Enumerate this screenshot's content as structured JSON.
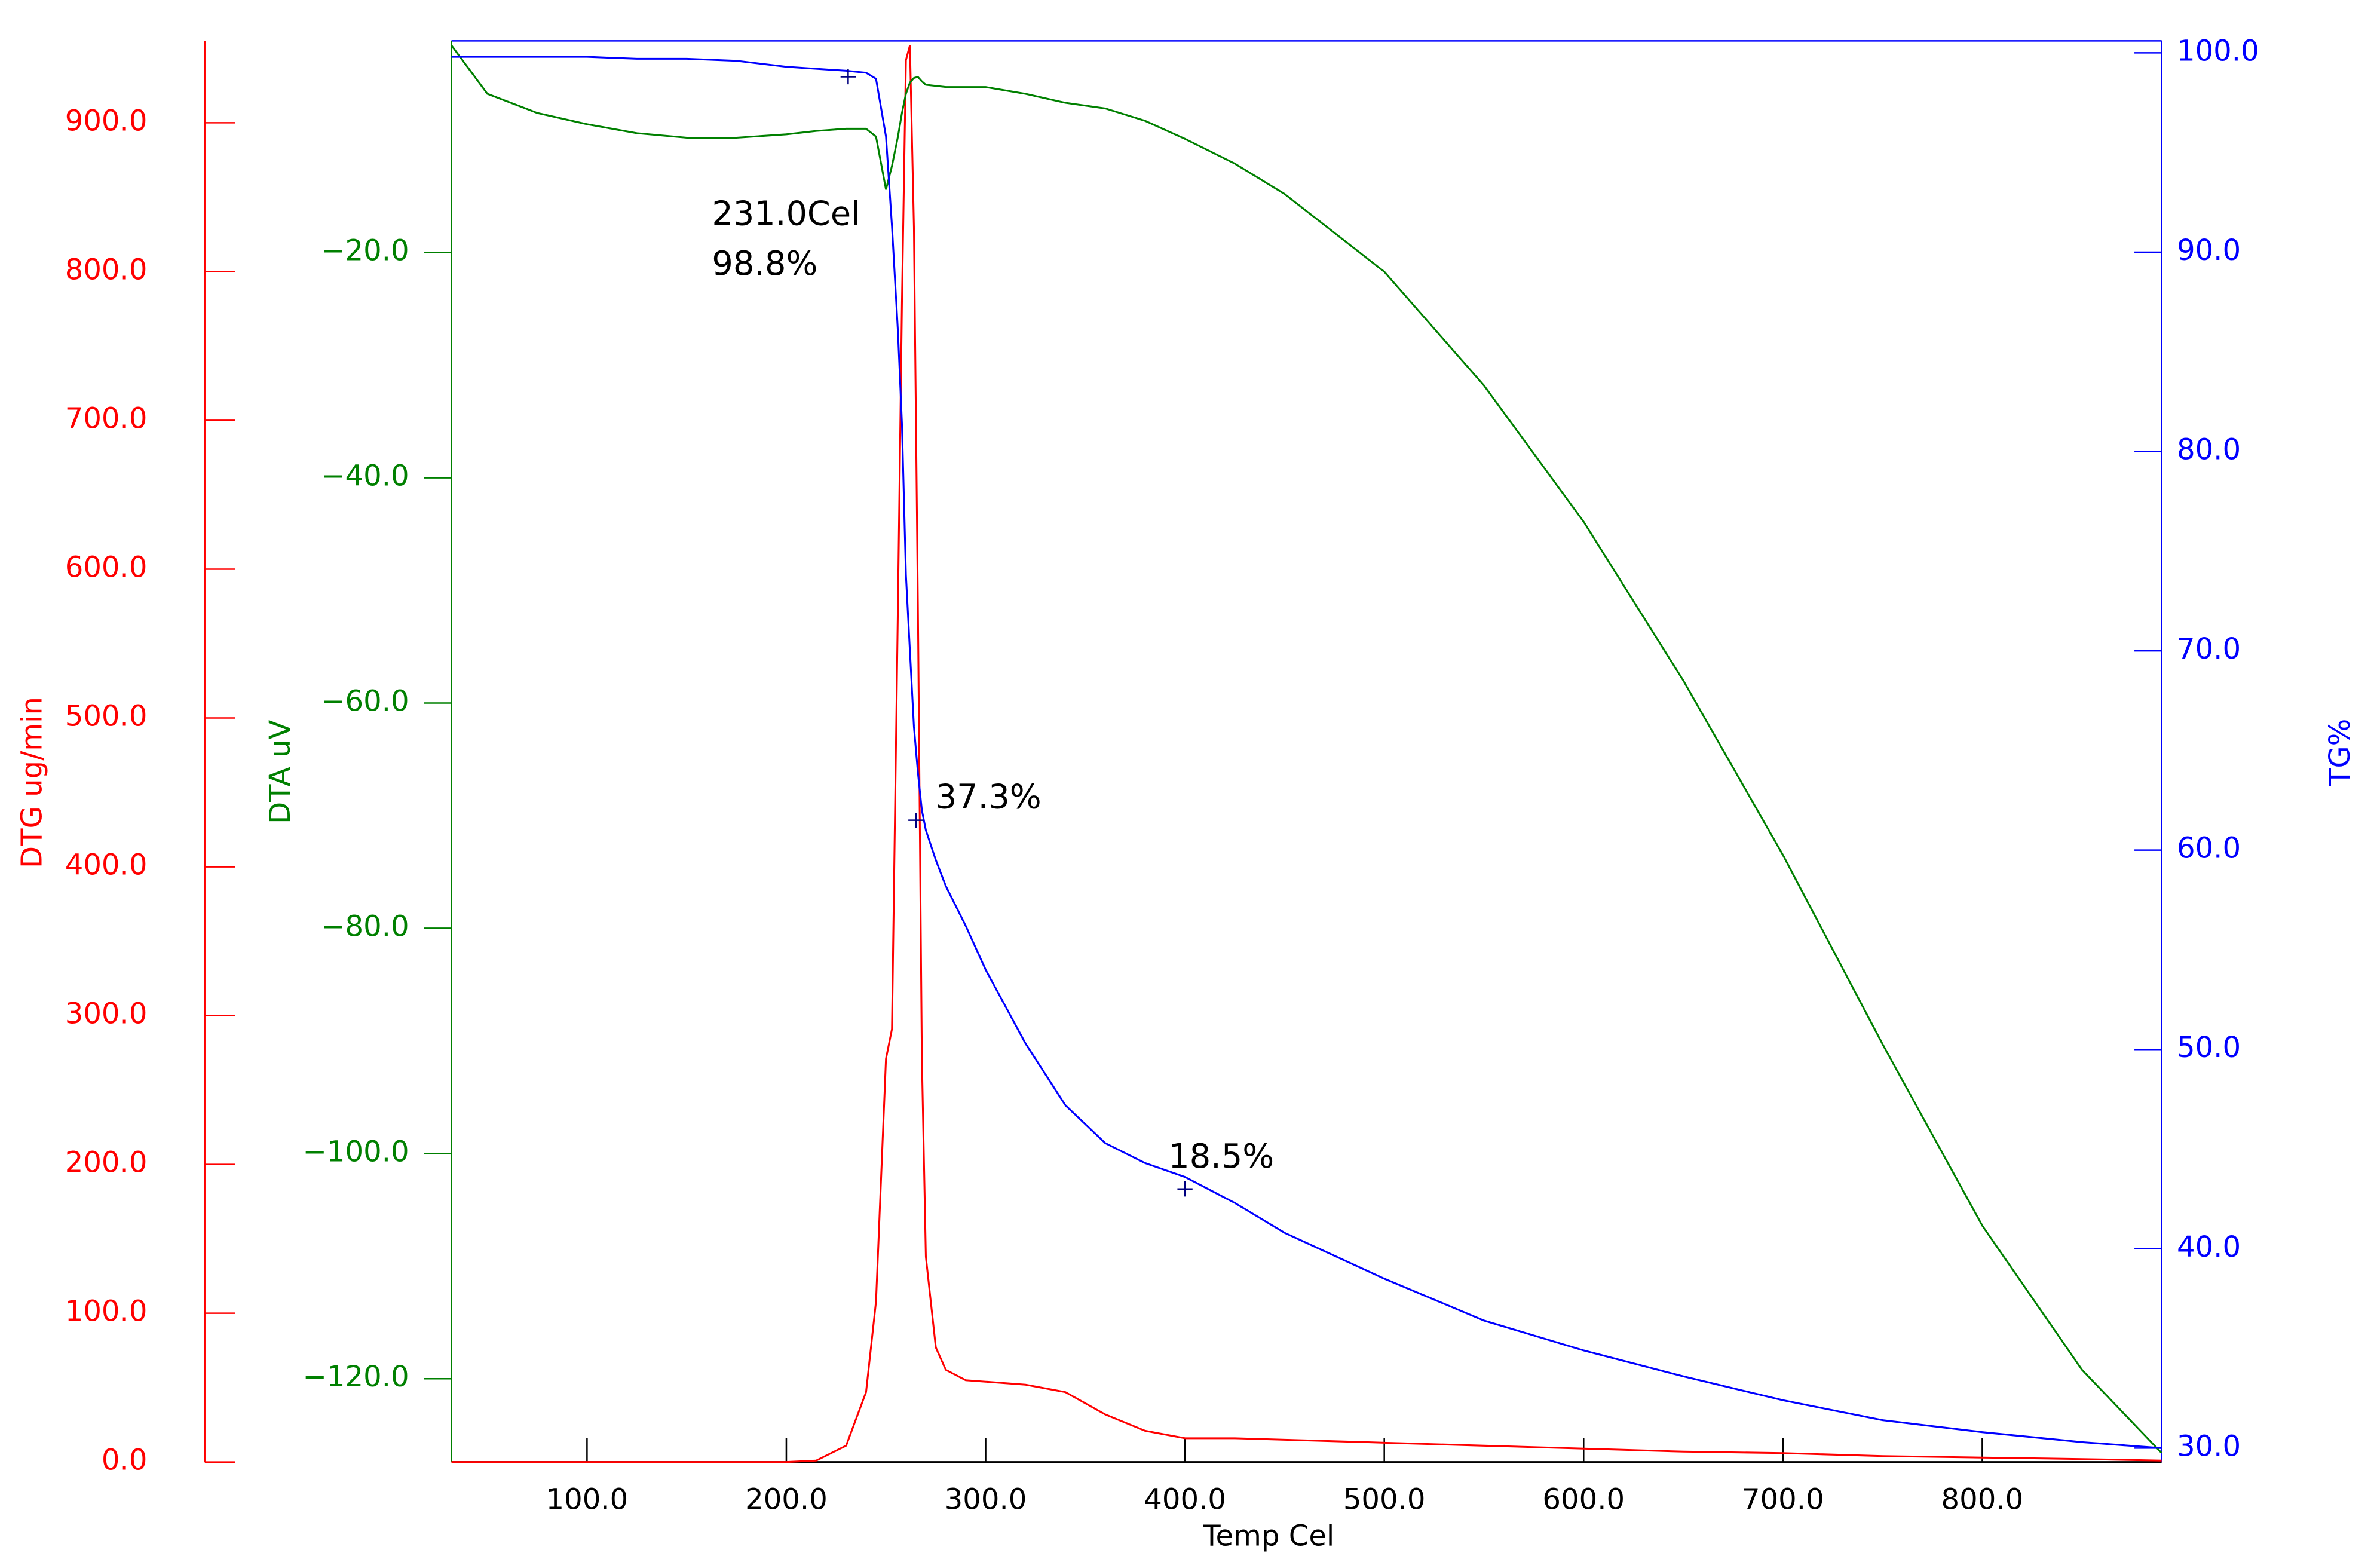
{
  "chart_data": {
    "type": "line",
    "x_label": "Temp Cel",
    "xlim": [
      32,
      890
    ],
    "xticks": [
      {
        "value": 100,
        "label": "100.0"
      },
      {
        "value": 200,
        "label": "200.0"
      },
      {
        "value": 300,
        "label": "300.0"
      },
      {
        "value": 400,
        "label": "400.0"
      },
      {
        "value": 500,
        "label": "500.0"
      },
      {
        "value": 600,
        "label": "600.0"
      },
      {
        "value": 700,
        "label": "700.0"
      },
      {
        "value": 800,
        "label": "800.0"
      }
    ],
    "x": [
      32,
      50,
      75,
      100,
      125,
      150,
      175,
      200,
      215,
      230,
      240,
      245,
      250,
      253,
      256,
      258,
      260,
      262,
      264,
      266,
      268,
      270,
      275,
      280,
      290,
      300,
      320,
      340,
      360,
      380,
      400,
      425,
      450,
      500,
      550,
      600,
      650,
      700,
      750,
      800,
      850,
      890
    ],
    "series": [
      {
        "name": "DTG ug/min",
        "color": "#ff0000",
        "ylim": [
          0,
          955
        ],
        "yticks": [
          {
            "value": 0,
            "label": "0.0"
          },
          {
            "value": 100,
            "label": "100.0"
          },
          {
            "value": 200,
            "label": "200.0"
          },
          {
            "value": 300,
            "label": "300.0"
          },
          {
            "value": 400,
            "label": "400.0"
          },
          {
            "value": 500,
            "label": "500.0"
          },
          {
            "value": 600,
            "label": "600.0"
          },
          {
            "value": 700,
            "label": "700.0"
          },
          {
            "value": 800,
            "label": "800.0"
          },
          {
            "value": 900,
            "label": "900.0"
          }
        ],
        "values": [
          0,
          0,
          0,
          0,
          0,
          0,
          0,
          0,
          1,
          11,
          47,
          108,
          271,
          291,
          576,
          779,
          942,
          952,
          830,
          576,
          271,
          138,
          77,
          62,
          55,
          54,
          52,
          47,
          32,
          21,
          16,
          16,
          15,
          13,
          11,
          9,
          7,
          6,
          4,
          3,
          2,
          1
        ]
      },
      {
        "name": "DTA uV",
        "color": "#008000",
        "ylim": [
          -127.4,
          -1.2
        ],
        "yticks": [
          {
            "value": -20,
            "label": "−20.0"
          },
          {
            "value": -40,
            "label": "−40.0"
          },
          {
            "value": -60,
            "label": "−60.0"
          },
          {
            "value": -80,
            "label": "−80.0"
          },
          {
            "value": -100,
            "label": "−100.0"
          },
          {
            "value": -120,
            "label": "−120.0"
          }
        ],
        "values": [
          -1.6,
          -5.9,
          -7.6,
          -8.6,
          -9.4,
          -9.8,
          -9.8,
          -9.5,
          -9.2,
          -9.0,
          -9.0,
          -9.7,
          -14.4,
          -12.3,
          -9.7,
          -7.6,
          -5.9,
          -4.9,
          -4.5,
          -4.4,
          -4.8,
          -5.1,
          -5.2,
          -5.3,
          -5.3,
          -5.3,
          -5.9,
          -6.7,
          -7.2,
          -8.3,
          -9.9,
          -12.1,
          -14.8,
          -21.7,
          -31.8,
          -43.9,
          -58.0,
          -73.5,
          -90.3,
          -106.4,
          -119.2,
          -126.6
        ]
      },
      {
        "name": "TG%",
        "color": "#0000ff",
        "ylim": [
          29.3,
          100.6
        ],
        "yticks": [
          {
            "value": 30,
            "label": "30.0"
          },
          {
            "value": 40,
            "label": "40.0"
          },
          {
            "value": 50,
            "label": "50.0"
          },
          {
            "value": 60,
            "label": "60.0"
          },
          {
            "value": 70,
            "label": "70.0"
          },
          {
            "value": 80,
            "label": "80.0"
          },
          {
            "value": 90,
            "label": "90.0"
          },
          {
            "value": 100,
            "label": "100.0"
          }
        ],
        "values": [
          99.8,
          99.8,
          99.8,
          99.8,
          99.7,
          99.7,
          99.6,
          99.3,
          99.2,
          99.1,
          99.0,
          98.7,
          95.8,
          91.3,
          86.0,
          81.4,
          73.8,
          70.0,
          66.2,
          63.9,
          62.0,
          61.0,
          59.5,
          58.2,
          56.2,
          54.0,
          50.3,
          47.2,
          45.3,
          44.3,
          43.6,
          42.3,
          40.8,
          38.5,
          36.4,
          34.9,
          33.6,
          32.4,
          31.4,
          30.8,
          30.3,
          30.0
        ]
      }
    ],
    "annotations": [
      {
        "x": 231,
        "y": 98.8,
        "labels": [
          "231.0Cel",
          "98.8%"
        ]
      },
      {
        "x": 265,
        "y": 61.5,
        "labels": [
          "37.3%"
        ]
      },
      {
        "x": 400,
        "y": 43.0,
        "labels": [
          "18.5%"
        ]
      }
    ]
  }
}
